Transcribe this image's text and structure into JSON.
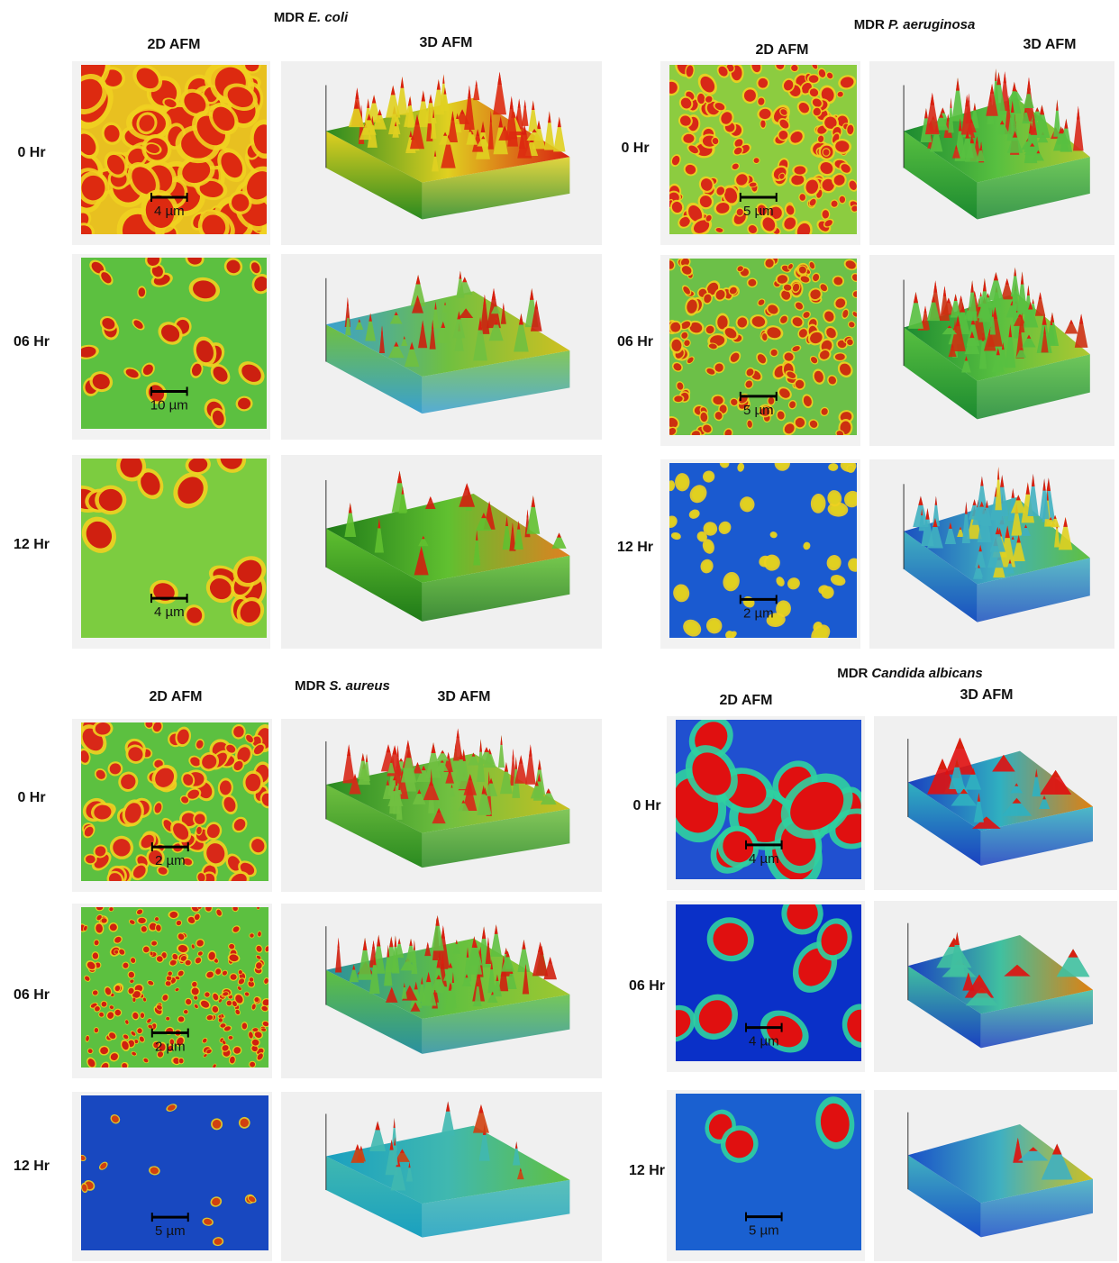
{
  "panels": [
    {
      "title": {
        "prefix": "MDR",
        "species": "E. coli"
      },
      "columns": [
        "2D AFM",
        "3D AFM"
      ],
      "rows": [
        {
          "label": "0 Hr",
          "scale_bar": "4 µm"
        },
        {
          "label": "06 Hr",
          "scale_bar": "10 µm"
        },
        {
          "label": "12 Hr",
          "scale_bar": "4 µm"
        }
      ]
    },
    {
      "title": {
        "prefix": "MDR",
        "species": "P. aeruginosa"
      },
      "columns": [
        "2D AFM",
        "3D AFM"
      ],
      "rows": [
        {
          "label": "0 Hr",
          "scale_bar": "5 µm"
        },
        {
          "label": "06 Hr",
          "scale_bar": "5 µm"
        },
        {
          "label": "12 Hr",
          "scale_bar": "2 µm"
        }
      ]
    },
    {
      "title": {
        "prefix": "MDR",
        "species": "S. aureus"
      },
      "columns": [
        "2D AFM",
        "3D AFM"
      ],
      "rows": [
        {
          "label": "0 Hr",
          "scale_bar": "2 µm"
        },
        {
          "label": "06 Hr",
          "scale_bar": "2 µm"
        },
        {
          "label": "12 Hr",
          "scale_bar": "5 µm"
        }
      ]
    },
    {
      "title": {
        "prefix": "MDR",
        "species": "Candida albicans"
      },
      "columns": [
        "2D AFM",
        "3D AFM"
      ],
      "rows": [
        {
          "label": "0 Hr",
          "scale_bar": "4 µm"
        },
        {
          "label": "06 Hr",
          "scale_bar": "4 µm"
        },
        {
          "label": "12 Hr",
          "scale_bar": "5 µm"
        }
      ]
    }
  ]
}
